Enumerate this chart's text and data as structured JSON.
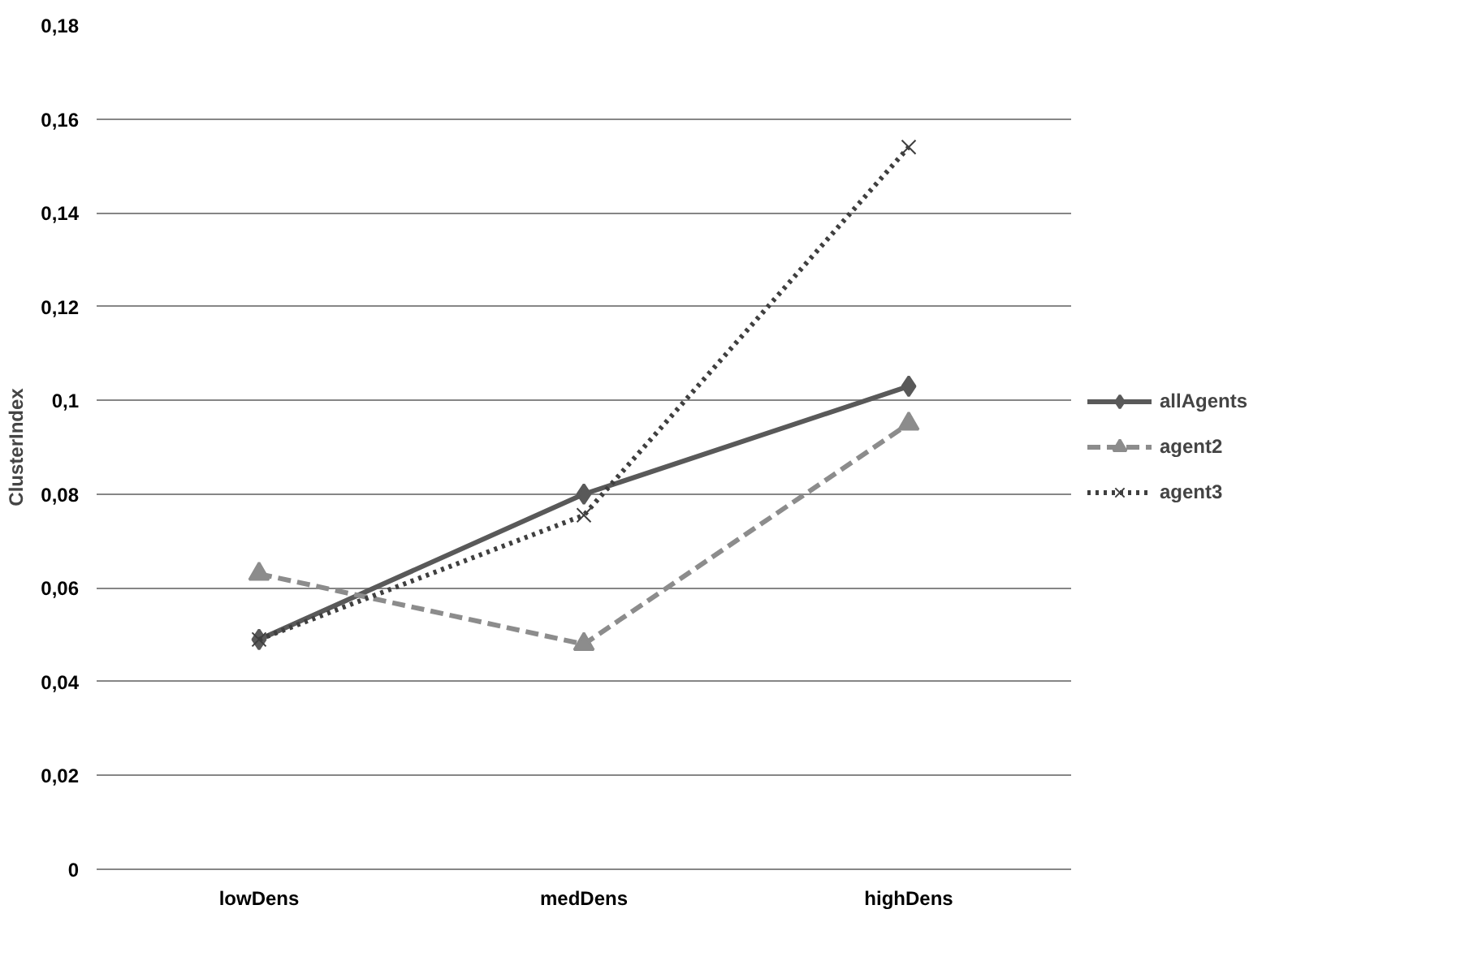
{
  "chart_data": {
    "type": "line",
    "ylabel": "ClusterIndex",
    "categories": [
      "lowDens",
      "medDens",
      "highDens"
    ],
    "series": [
      {
        "name": "allAgents",
        "color": "#595959",
        "marker": "diamond",
        "line_style": "solid",
        "values": [
          0.049,
          0.08,
          0.103
        ]
      },
      {
        "name": "agent2",
        "color": "#8c8c8c",
        "marker": "triangle",
        "line_style": "dashed",
        "values": [
          0.063,
          0.048,
          0.095
        ]
      },
      {
        "name": "agent3",
        "color": "#3f3f3f",
        "marker": "cross",
        "line_style": "dotted",
        "values": [
          0.049,
          0.0755,
          0.154
        ]
      }
    ],
    "ylim": [
      0,
      0.18
    ],
    "yticks": [
      {
        "value": 0,
        "label": "0"
      },
      {
        "value": 0.02,
        "label": "0,02"
      },
      {
        "value": 0.04,
        "label": "0,04"
      },
      {
        "value": 0.06,
        "label": "0,06"
      },
      {
        "value": 0.08,
        "label": "0,08"
      },
      {
        "value": 0.1,
        "label": "0,1"
      },
      {
        "value": 0.12,
        "label": "0,12"
      },
      {
        "value": 0.14,
        "label": "0,14"
      },
      {
        "value": 0.16,
        "label": "0,16"
      },
      {
        "value": 0.18,
        "label": "0,18"
      }
    ],
    "grid": "y",
    "legend": "right"
  }
}
